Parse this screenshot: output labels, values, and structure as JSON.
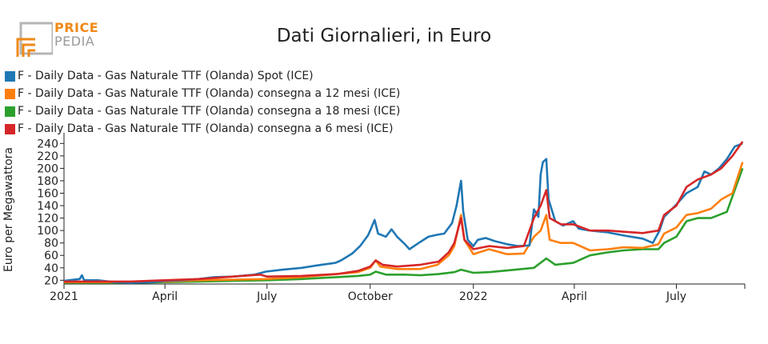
{
  "logo": {
    "line1": "PRICE",
    "line2": "PEDIA"
  },
  "chart_data": {
    "type": "line",
    "title": "Dati Giornalieri, in Euro",
    "ylabel": "Euro per Megawattora",
    "xlabel": "",
    "ylim": [
      14,
      252
    ],
    "yticks": [
      20,
      40,
      60,
      80,
      100,
      120,
      140,
      160,
      180,
      200,
      220,
      240
    ],
    "xlim": [
      "2021-01-01",
      "2022-08-31"
    ],
    "xticks": [
      {
        "date": "2021-01-01",
        "label": "2021"
      },
      {
        "date": "2021-04-01",
        "label": "April"
      },
      {
        "date": "2021-07-01",
        "label": "July"
      },
      {
        "date": "2021-10-01",
        "label": "October"
      },
      {
        "date": "2022-01-01",
        "label": "2022"
      },
      {
        "date": "2022-04-01",
        "label": "April"
      },
      {
        "date": "2022-07-01",
        "label": "July"
      }
    ],
    "grid": false,
    "legend_position": "top-left",
    "series": [
      {
        "name": "F - Daily Data - Gas Naturale TTF (Olanda) Spot (ICE)",
        "color": "#1f77b4",
        "points": [
          [
            "2021-01-01",
            19
          ],
          [
            "2021-01-10",
            21
          ],
          [
            "2021-01-15",
            22
          ],
          [
            "2021-01-17",
            28
          ],
          [
            "2021-01-19",
            20
          ],
          [
            "2021-01-31",
            20
          ],
          [
            "2021-02-15",
            17
          ],
          [
            "2021-03-01",
            16
          ],
          [
            "2021-03-20",
            17
          ],
          [
            "2021-04-01",
            19
          ],
          [
            "2021-04-15",
            20
          ],
          [
            "2021-05-01",
            22
          ],
          [
            "2021-05-15",
            25
          ],
          [
            "2021-06-01",
            26
          ],
          [
            "2021-06-20",
            29
          ],
          [
            "2021-06-30",
            34
          ],
          [
            "2021-07-15",
            37
          ],
          [
            "2021-08-01",
            40
          ],
          [
            "2021-08-15",
            44
          ],
          [
            "2021-08-31",
            48
          ],
          [
            "2021-09-05",
            52
          ],
          [
            "2021-09-15",
            63
          ],
          [
            "2021-09-22",
            75
          ],
          [
            "2021-09-29",
            92
          ],
          [
            "2021-10-01",
            100
          ],
          [
            "2021-10-05",
            117
          ],
          [
            "2021-10-08",
            95
          ],
          [
            "2021-10-15",
            90
          ],
          [
            "2021-10-20",
            102
          ],
          [
            "2021-10-25",
            90
          ],
          [
            "2021-11-01",
            78
          ],
          [
            "2021-11-05",
            70
          ],
          [
            "2021-11-15",
            82
          ],
          [
            "2021-11-22",
            90
          ],
          [
            "2021-11-29",
            93
          ],
          [
            "2021-12-06",
            95
          ],
          [
            "2021-12-13",
            112
          ],
          [
            "2021-12-17",
            140
          ],
          [
            "2021-12-21",
            180
          ],
          [
            "2021-12-23",
            130
          ],
          [
            "2021-12-27",
            85
          ],
          [
            "2022-01-01",
            75
          ],
          [
            "2022-01-05",
            85
          ],
          [
            "2022-01-12",
            88
          ],
          [
            "2022-01-20",
            83
          ],
          [
            "2022-01-31",
            78
          ],
          [
            "2022-02-10",
            75
          ],
          [
            "2022-02-20",
            76
          ],
          [
            "2022-02-24",
            134
          ],
          [
            "2022-02-28",
            122
          ],
          [
            "2022-03-02",
            190
          ],
          [
            "2022-03-04",
            210
          ],
          [
            "2022-03-07",
            215
          ],
          [
            "2022-03-09",
            150
          ],
          [
            "2022-03-15",
            115
          ],
          [
            "2022-03-22",
            108
          ],
          [
            "2022-03-31",
            115
          ],
          [
            "2022-04-05",
            103
          ],
          [
            "2022-04-15",
            100
          ],
          [
            "2022-05-01",
            97
          ],
          [
            "2022-05-15",
            92
          ],
          [
            "2022-06-01",
            87
          ],
          [
            "2022-06-10",
            80
          ],
          [
            "2022-06-16",
            100
          ],
          [
            "2022-06-20",
            122
          ],
          [
            "2022-06-30",
            140
          ],
          [
            "2022-07-10",
            160
          ],
          [
            "2022-07-20",
            170
          ],
          [
            "2022-07-26",
            195
          ],
          [
            "2022-08-01",
            190
          ],
          [
            "2022-08-08",
            200
          ],
          [
            "2022-08-15",
            215
          ],
          [
            "2022-08-22",
            235
          ],
          [
            "2022-08-29",
            240
          ]
        ]
      },
      {
        "name": "F - Daily Data - Gas Naturale TTF (Olanda) consegna a 12 mesi (ICE)",
        "color": "#ff7f0e",
        "points": [
          [
            "2021-01-01",
            17
          ],
          [
            "2021-02-01",
            17
          ],
          [
            "2021-03-01",
            17
          ],
          [
            "2021-04-01",
            18
          ],
          [
            "2021-05-01",
            20
          ],
          [
            "2021-06-01",
            21
          ],
          [
            "2021-06-30",
            22
          ],
          [
            "2021-08-01",
            25
          ],
          [
            "2021-09-01",
            30
          ],
          [
            "2021-09-20",
            33
          ],
          [
            "2021-10-01",
            40
          ],
          [
            "2021-10-06",
            52
          ],
          [
            "2021-10-10",
            42
          ],
          [
            "2021-10-25",
            38
          ],
          [
            "2021-11-15",
            38
          ],
          [
            "2021-11-30",
            45
          ],
          [
            "2021-12-10",
            60
          ],
          [
            "2021-12-15",
            75
          ],
          [
            "2021-12-21",
            125
          ],
          [
            "2021-12-24",
            85
          ],
          [
            "2022-01-01",
            62
          ],
          [
            "2022-01-15",
            70
          ],
          [
            "2022-01-31",
            62
          ],
          [
            "2022-02-15",
            63
          ],
          [
            "2022-02-24",
            90
          ],
          [
            "2022-03-02",
            100
          ],
          [
            "2022-03-07",
            125
          ],
          [
            "2022-03-10",
            85
          ],
          [
            "2022-03-20",
            80
          ],
          [
            "2022-03-31",
            80
          ],
          [
            "2022-04-15",
            68
          ],
          [
            "2022-05-01",
            70
          ],
          [
            "2022-05-15",
            73
          ],
          [
            "2022-06-01",
            72
          ],
          [
            "2022-06-15",
            78
          ],
          [
            "2022-06-20",
            95
          ],
          [
            "2022-07-01",
            105
          ],
          [
            "2022-07-10",
            125
          ],
          [
            "2022-07-20",
            128
          ],
          [
            "2022-08-01",
            135
          ],
          [
            "2022-08-10",
            150
          ],
          [
            "2022-08-20",
            160
          ],
          [
            "2022-08-29",
            210
          ]
        ]
      },
      {
        "name": "F - Daily Data - Gas Naturale TTF (Olanda) consegna a 18 mesi (ICE)",
        "color": "#2ca02c",
        "points": [
          [
            "2021-01-01",
            16
          ],
          [
            "2021-02-01",
            16
          ],
          [
            "2021-03-01",
            16
          ],
          [
            "2021-04-01",
            17
          ],
          [
            "2021-05-01",
            18
          ],
          [
            "2021-06-01",
            19
          ],
          [
            "2021-07-01",
            20
          ],
          [
            "2021-08-01",
            22
          ],
          [
            "2021-09-01",
            25
          ],
          [
            "2021-09-20",
            27
          ],
          [
            "2021-10-01",
            29
          ],
          [
            "2021-10-06",
            34
          ],
          [
            "2021-10-15",
            29
          ],
          [
            "2021-11-01",
            29
          ],
          [
            "2021-11-15",
            28
          ],
          [
            "2021-12-01",
            30
          ],
          [
            "2021-12-15",
            33
          ],
          [
            "2021-12-21",
            37
          ],
          [
            "2022-01-01",
            32
          ],
          [
            "2022-01-15",
            33
          ],
          [
            "2022-02-01",
            36
          ],
          [
            "2022-02-24",
            40
          ],
          [
            "2022-03-07",
            55
          ],
          [
            "2022-03-15",
            45
          ],
          [
            "2022-03-31",
            48
          ],
          [
            "2022-04-15",
            60
          ],
          [
            "2022-05-01",
            65
          ],
          [
            "2022-05-15",
            68
          ],
          [
            "2022-06-01",
            70
          ],
          [
            "2022-06-15",
            70
          ],
          [
            "2022-06-20",
            80
          ],
          [
            "2022-07-01",
            90
          ],
          [
            "2022-07-10",
            115
          ],
          [
            "2022-07-20",
            120
          ],
          [
            "2022-08-01",
            120
          ],
          [
            "2022-08-15",
            130
          ],
          [
            "2022-08-29",
            200
          ]
        ]
      },
      {
        "name": "F - Daily Data - Gas Naturale TTF (Olanda) consegna a 6 mesi (ICE)",
        "color": "#d62728",
        "points": [
          [
            "2021-01-01",
            18
          ],
          [
            "2021-02-01",
            18
          ],
          [
            "2021-03-01",
            18
          ],
          [
            "2021-04-01",
            20
          ],
          [
            "2021-05-01",
            22
          ],
          [
            "2021-06-01",
            26
          ],
          [
            "2021-06-25",
            29
          ],
          [
            "2021-07-01",
            26
          ],
          [
            "2021-08-01",
            27
          ],
          [
            "2021-09-01",
            30
          ],
          [
            "2021-09-20",
            35
          ],
          [
            "2021-10-01",
            42
          ],
          [
            "2021-10-06",
            52
          ],
          [
            "2021-10-12",
            45
          ],
          [
            "2021-10-25",
            42
          ],
          [
            "2021-11-15",
            45
          ],
          [
            "2021-12-01",
            50
          ],
          [
            "2021-12-10",
            65
          ],
          [
            "2021-12-15",
            80
          ],
          [
            "2021-12-21",
            120
          ],
          [
            "2021-12-24",
            85
          ],
          [
            "2022-01-01",
            70
          ],
          [
            "2022-01-15",
            75
          ],
          [
            "2022-01-31",
            72
          ],
          [
            "2022-02-15",
            75
          ],
          [
            "2022-02-24",
            120
          ],
          [
            "2022-03-02",
            140
          ],
          [
            "2022-03-07",
            165
          ],
          [
            "2022-03-10",
            120
          ],
          [
            "2022-03-20",
            110
          ],
          [
            "2022-03-31",
            110
          ],
          [
            "2022-04-15",
            100
          ],
          [
            "2022-05-01",
            100
          ],
          [
            "2022-05-15",
            98
          ],
          [
            "2022-06-01",
            96
          ],
          [
            "2022-06-15",
            100
          ],
          [
            "2022-06-20",
            125
          ],
          [
            "2022-07-01",
            140
          ],
          [
            "2022-07-10",
            170
          ],
          [
            "2022-07-20",
            182
          ],
          [
            "2022-08-01",
            190
          ],
          [
            "2022-08-10",
            200
          ],
          [
            "2022-08-20",
            220
          ],
          [
            "2022-08-29",
            243
          ]
        ]
      }
    ]
  }
}
